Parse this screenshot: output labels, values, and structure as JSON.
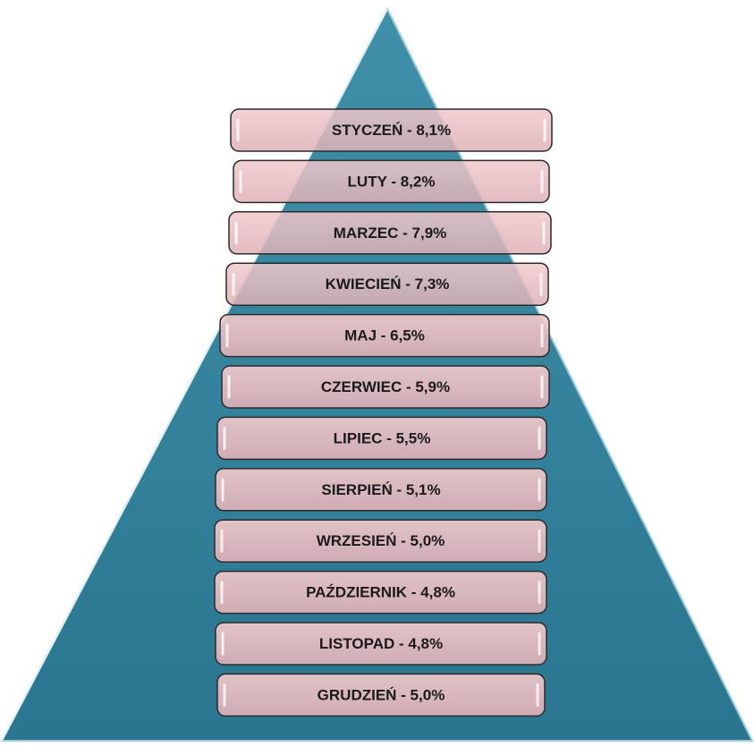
{
  "items": [
    "STYCZEŃ - 8,1%",
    "LUTY - 8,2%",
    "MARZEC - 7,9%",
    "KWIECIEŃ - 7,3%",
    "MAJ - 6,5%",
    "CZERWIEC - 5,9%",
    "LIPIEC - 5,5%",
    "SIERPIEŃ - 5,1%",
    "WRZESIEŃ - 5,0%",
    "PAŹDZIERNIK - 4,8%",
    "LISTOPAD - 4,8%",
    "GRUDZIEŃ - 5,0%"
  ]
}
